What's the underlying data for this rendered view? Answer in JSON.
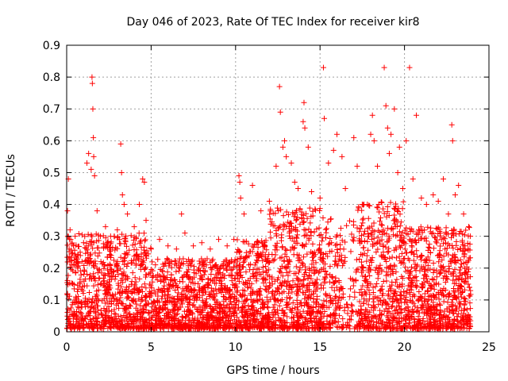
{
  "chart_data": {
    "type": "scatter",
    "title": "Day 046 of 2023, Rate Of TEC Index for receiver kir8",
    "xlabel": "GPS time / hours",
    "ylabel": "ROTI / TECUs",
    "xlim": [
      0,
      25
    ],
    "ylim": [
      0,
      0.9
    ],
    "xticks": [
      0,
      5,
      10,
      15,
      20,
      25
    ],
    "yticks": [
      0,
      0.1,
      0.2,
      0.3,
      0.4,
      0.5,
      0.6,
      0.7,
      0.8,
      0.9
    ],
    "grid": true,
    "marker": "+",
    "color": "#ff0000",
    "series": [
      {
        "name": "ROTI",
        "points": [
          [
            0.05,
            0.38
          ],
          [
            0.1,
            0.48
          ],
          [
            0.15,
            0.26
          ],
          [
            0.2,
            0.32
          ],
          [
            0.3,
            0.21
          ],
          [
            0.4,
            0.27
          ],
          [
            0.5,
            0.3
          ],
          [
            0.6,
            0.22
          ],
          [
            0.8,
            0.25
          ],
          [
            1.0,
            0.28
          ],
          [
            1.2,
            0.53
          ],
          [
            1.3,
            0.56
          ],
          [
            1.45,
            0.51
          ],
          [
            1.5,
            0.8
          ],
          [
            1.52,
            0.78
          ],
          [
            1.55,
            0.7
          ],
          [
            1.58,
            0.61
          ],
          [
            1.6,
            0.55
          ],
          [
            1.65,
            0.49
          ],
          [
            1.8,
            0.38
          ],
          [
            2.0,
            0.3
          ],
          [
            2.3,
            0.33
          ],
          [
            2.6,
            0.3
          ],
          [
            3.0,
            0.32
          ],
          [
            3.2,
            0.59
          ],
          [
            3.25,
            0.5
          ],
          [
            3.3,
            0.43
          ],
          [
            3.4,
            0.4
          ],
          [
            3.6,
            0.37
          ],
          [
            4.0,
            0.33
          ],
          [
            4.3,
            0.4
          ],
          [
            4.5,
            0.48
          ],
          [
            4.6,
            0.47
          ],
          [
            4.7,
            0.35
          ],
          [
            5.0,
            0.26
          ],
          [
            5.5,
            0.29
          ],
          [
            6.0,
            0.27
          ],
          [
            6.5,
            0.26
          ],
          [
            6.8,
            0.37
          ],
          [
            7.0,
            0.31
          ],
          [
            7.5,
            0.27
          ],
          [
            8.0,
            0.28
          ],
          [
            8.5,
            0.26
          ],
          [
            9.0,
            0.29
          ],
          [
            9.5,
            0.27
          ],
          [
            9.9,
            0.29
          ],
          [
            10.2,
            0.49
          ],
          [
            10.25,
            0.47
          ],
          [
            10.3,
            0.42
          ],
          [
            10.5,
            0.37
          ],
          [
            11.0,
            0.46
          ],
          [
            11.5,
            0.38
          ],
          [
            12.0,
            0.41
          ],
          [
            12.4,
            0.52
          ],
          [
            12.6,
            0.77
          ],
          [
            12.65,
            0.69
          ],
          [
            12.8,
            0.58
          ],
          [
            12.9,
            0.6
          ],
          [
            13.0,
            0.55
          ],
          [
            13.3,
            0.53
          ],
          [
            13.5,
            0.47
          ],
          [
            13.7,
            0.45
          ],
          [
            14.0,
            0.66
          ],
          [
            14.05,
            0.72
          ],
          [
            14.1,
            0.64
          ],
          [
            14.3,
            0.58
          ],
          [
            14.5,
            0.44
          ],
          [
            15.0,
            0.42
          ],
          [
            15.2,
            0.83
          ],
          [
            15.25,
            0.67
          ],
          [
            15.5,
            0.53
          ],
          [
            15.8,
            0.57
          ],
          [
            16.0,
            0.62
          ],
          [
            16.3,
            0.55
          ],
          [
            16.5,
            0.45
          ],
          [
            17.0,
            0.61
          ],
          [
            17.2,
            0.52
          ],
          [
            17.5,
            0.4
          ],
          [
            17.8,
            0.4
          ],
          [
            18.0,
            0.62
          ],
          [
            18.1,
            0.68
          ],
          [
            18.2,
            0.6
          ],
          [
            18.4,
            0.52
          ],
          [
            18.8,
            0.83
          ],
          [
            18.9,
            0.71
          ],
          [
            19.0,
            0.64
          ],
          [
            19.1,
            0.56
          ],
          [
            19.2,
            0.62
          ],
          [
            19.4,
            0.7
          ],
          [
            19.6,
            0.5
          ],
          [
            19.7,
            0.58
          ],
          [
            19.9,
            0.45
          ],
          [
            20.1,
            0.6
          ],
          [
            20.3,
            0.83
          ],
          [
            20.5,
            0.48
          ],
          [
            20.7,
            0.68
          ],
          [
            21.0,
            0.42
          ],
          [
            21.3,
            0.4
          ],
          [
            21.7,
            0.43
          ],
          [
            22.0,
            0.41
          ],
          [
            22.3,
            0.48
          ],
          [
            22.6,
            0.37
          ],
          [
            22.8,
            0.65
          ],
          [
            22.85,
            0.6
          ],
          [
            23.0,
            0.43
          ],
          [
            23.2,
            0.46
          ],
          [
            23.5,
            0.37
          ],
          [
            23.8,
            0.33
          ],
          [
            23.9,
            0.3
          ]
        ]
      }
    ]
  }
}
